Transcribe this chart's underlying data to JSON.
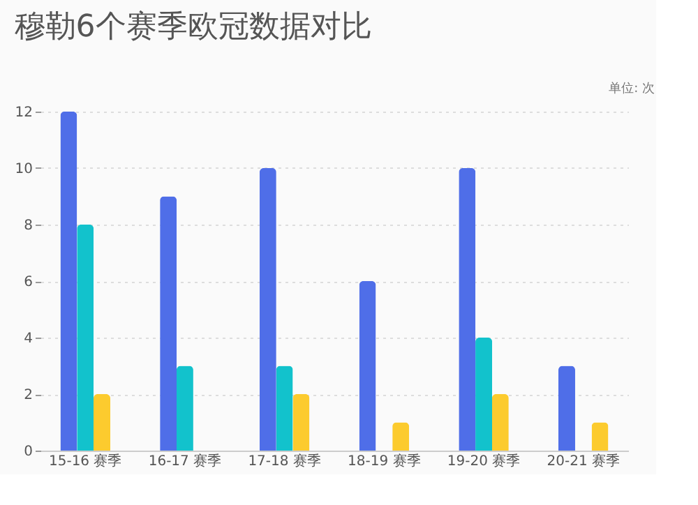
{
  "chart_data": {
    "type": "bar",
    "title": "穆勒6个赛季欧冠数据对比",
    "annotations": [
      "单位: 次"
    ],
    "categories": [
      "15-16 赛季",
      "16-17 赛季",
      "17-18 赛季",
      "18-19 赛季",
      "19-20 赛季",
      "20-21 赛季"
    ],
    "series": [
      {
        "color": "#4f6ee8",
        "values": [
          12,
          9,
          10,
          6,
          10,
          3
        ]
      },
      {
        "color": "#12c2cc",
        "values": [
          8,
          3,
          3,
          0,
          4,
          0
        ]
      },
      {
        "color": "#fccb2e",
        "values": [
          2,
          0,
          2,
          1,
          2,
          1
        ]
      }
    ],
    "ylim": [
      0,
      12
    ],
    "yticks": [
      0,
      2,
      4,
      6,
      8,
      10,
      12
    ],
    "grid": "y",
    "legend": false
  }
}
